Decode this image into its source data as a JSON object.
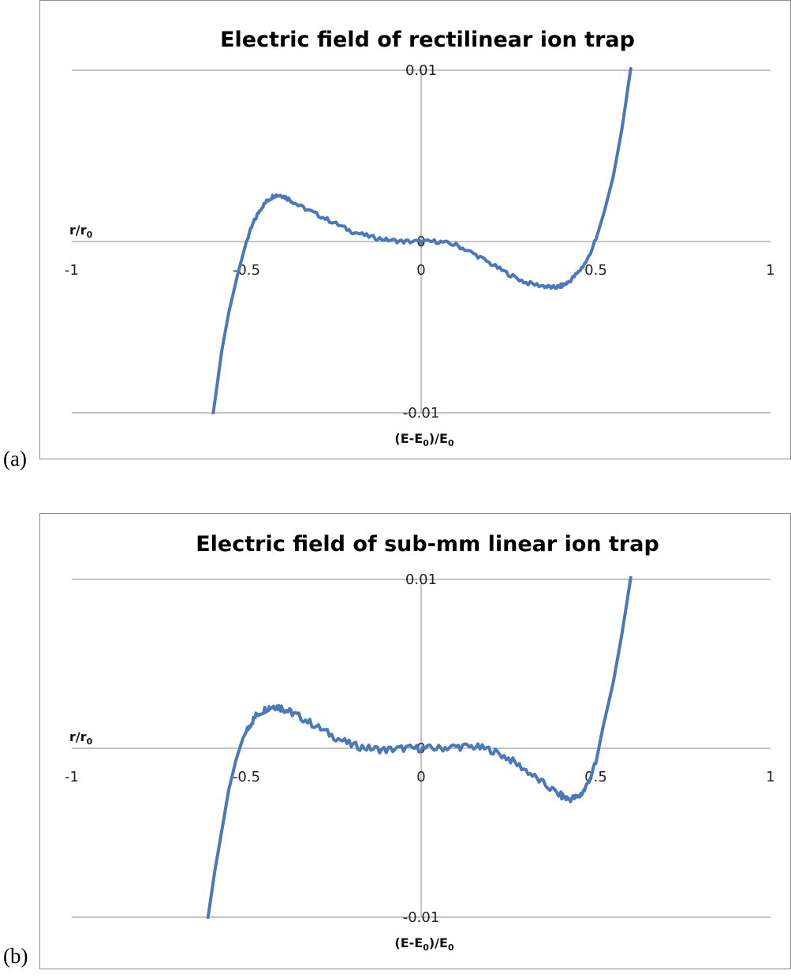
{
  "panel_labels": [
    "(a)",
    "(b)"
  ],
  "chart_data": [
    {
      "type": "line",
      "title": "Electric field of rectilinear ion trap",
      "xlabel": "(E-E0)/E0",
      "ylabel": "r/r0",
      "xlim": [
        -1,
        1
      ],
      "ylim": [
        -0.01,
        0.01
      ],
      "x_ticks": [
        "-1",
        "-0.5",
        "0",
        "0.5",
        "1"
      ],
      "y_ticks": [
        "0.01",
        "0",
        "-0.01"
      ],
      "grid": true,
      "noise": 0.00012,
      "series": [
        {
          "x": [
            -0.595,
            -0.57,
            -0.55,
            -0.525,
            -0.5,
            -0.48,
            -0.46,
            -0.44,
            -0.42,
            -0.4,
            -0.38,
            -0.35,
            -0.3,
            -0.25,
            -0.2,
            -0.15,
            -0.1,
            -0.05,
            0,
            0.05,
            0.1,
            0.15,
            0.2,
            0.25,
            0.3,
            0.35,
            0.38,
            0.4,
            0.42,
            0.45,
            0.475,
            0.5,
            0.525,
            0.55,
            0.575,
            0.6
          ],
          "y": [
            -0.01,
            -0.0063,
            -0.0041,
            -0.0019,
            0.0,
            0.0011,
            0.0019,
            0.0024,
            0.0027,
            0.0027,
            0.0025,
            0.0021,
            0.0016,
            0.0011,
            0.0006,
            0.0003,
            0.0001,
            0.0,
            0.0,
            0.0,
            -0.0002,
            -0.0007,
            -0.0013,
            -0.0019,
            -0.0024,
            -0.0026,
            -0.0027,
            -0.0026,
            -0.0024,
            -0.0018,
            -0.0011,
            0.0001,
            0.0018,
            0.0038,
            0.0066,
            0.0101
          ]
        }
      ]
    },
    {
      "type": "line",
      "title": "Electric field of sub-mm linear ion trap",
      "xlabel": "(E-E0)/E0",
      "ylabel": "r/r0",
      "xlim": [
        -1,
        1
      ],
      "ylim": [
        -0.01,
        0.01
      ],
      "x_ticks": [
        "-1",
        "-0.5",
        "0",
        "0.5",
        "1"
      ],
      "y_ticks": [
        "0.01",
        "0",
        "-0.01"
      ],
      "grid": true,
      "noise": 0.00022,
      "series": [
        {
          "x": [
            -0.61,
            -0.59,
            -0.57,
            -0.55,
            -0.53,
            -0.51,
            -0.49,
            -0.47,
            -0.44,
            -0.42,
            -0.4,
            -0.38,
            -0.35,
            -0.3,
            -0.25,
            -0.2,
            -0.15,
            -0.1,
            -0.05,
            0,
            0.05,
            0.1,
            0.15,
            0.2,
            0.25,
            0.3,
            0.35,
            0.4,
            0.42,
            0.45,
            0.47,
            0.5,
            0.52,
            0.55,
            0.575,
            0.6
          ],
          "y": [
            -0.01,
            -0.0072,
            -0.0048,
            -0.0024,
            -0.0007,
            0.0006,
            0.0014,
            0.002,
            0.0024,
            0.0025,
            0.0024,
            0.0022,
            0.0019,
            0.0013,
            0.0007,
            0.0002,
            0.0,
            -0.0001,
            0.0,
            0.0,
            0.0,
            0.0001,
            0.0001,
            -0.0001,
            -0.0006,
            -0.0013,
            -0.0021,
            -0.0028,
            -0.003,
            -0.0029,
            -0.0024,
            -0.0009,
            0.0012,
            0.0039,
            0.0068,
            0.0101
          ]
        }
      ]
    }
  ]
}
